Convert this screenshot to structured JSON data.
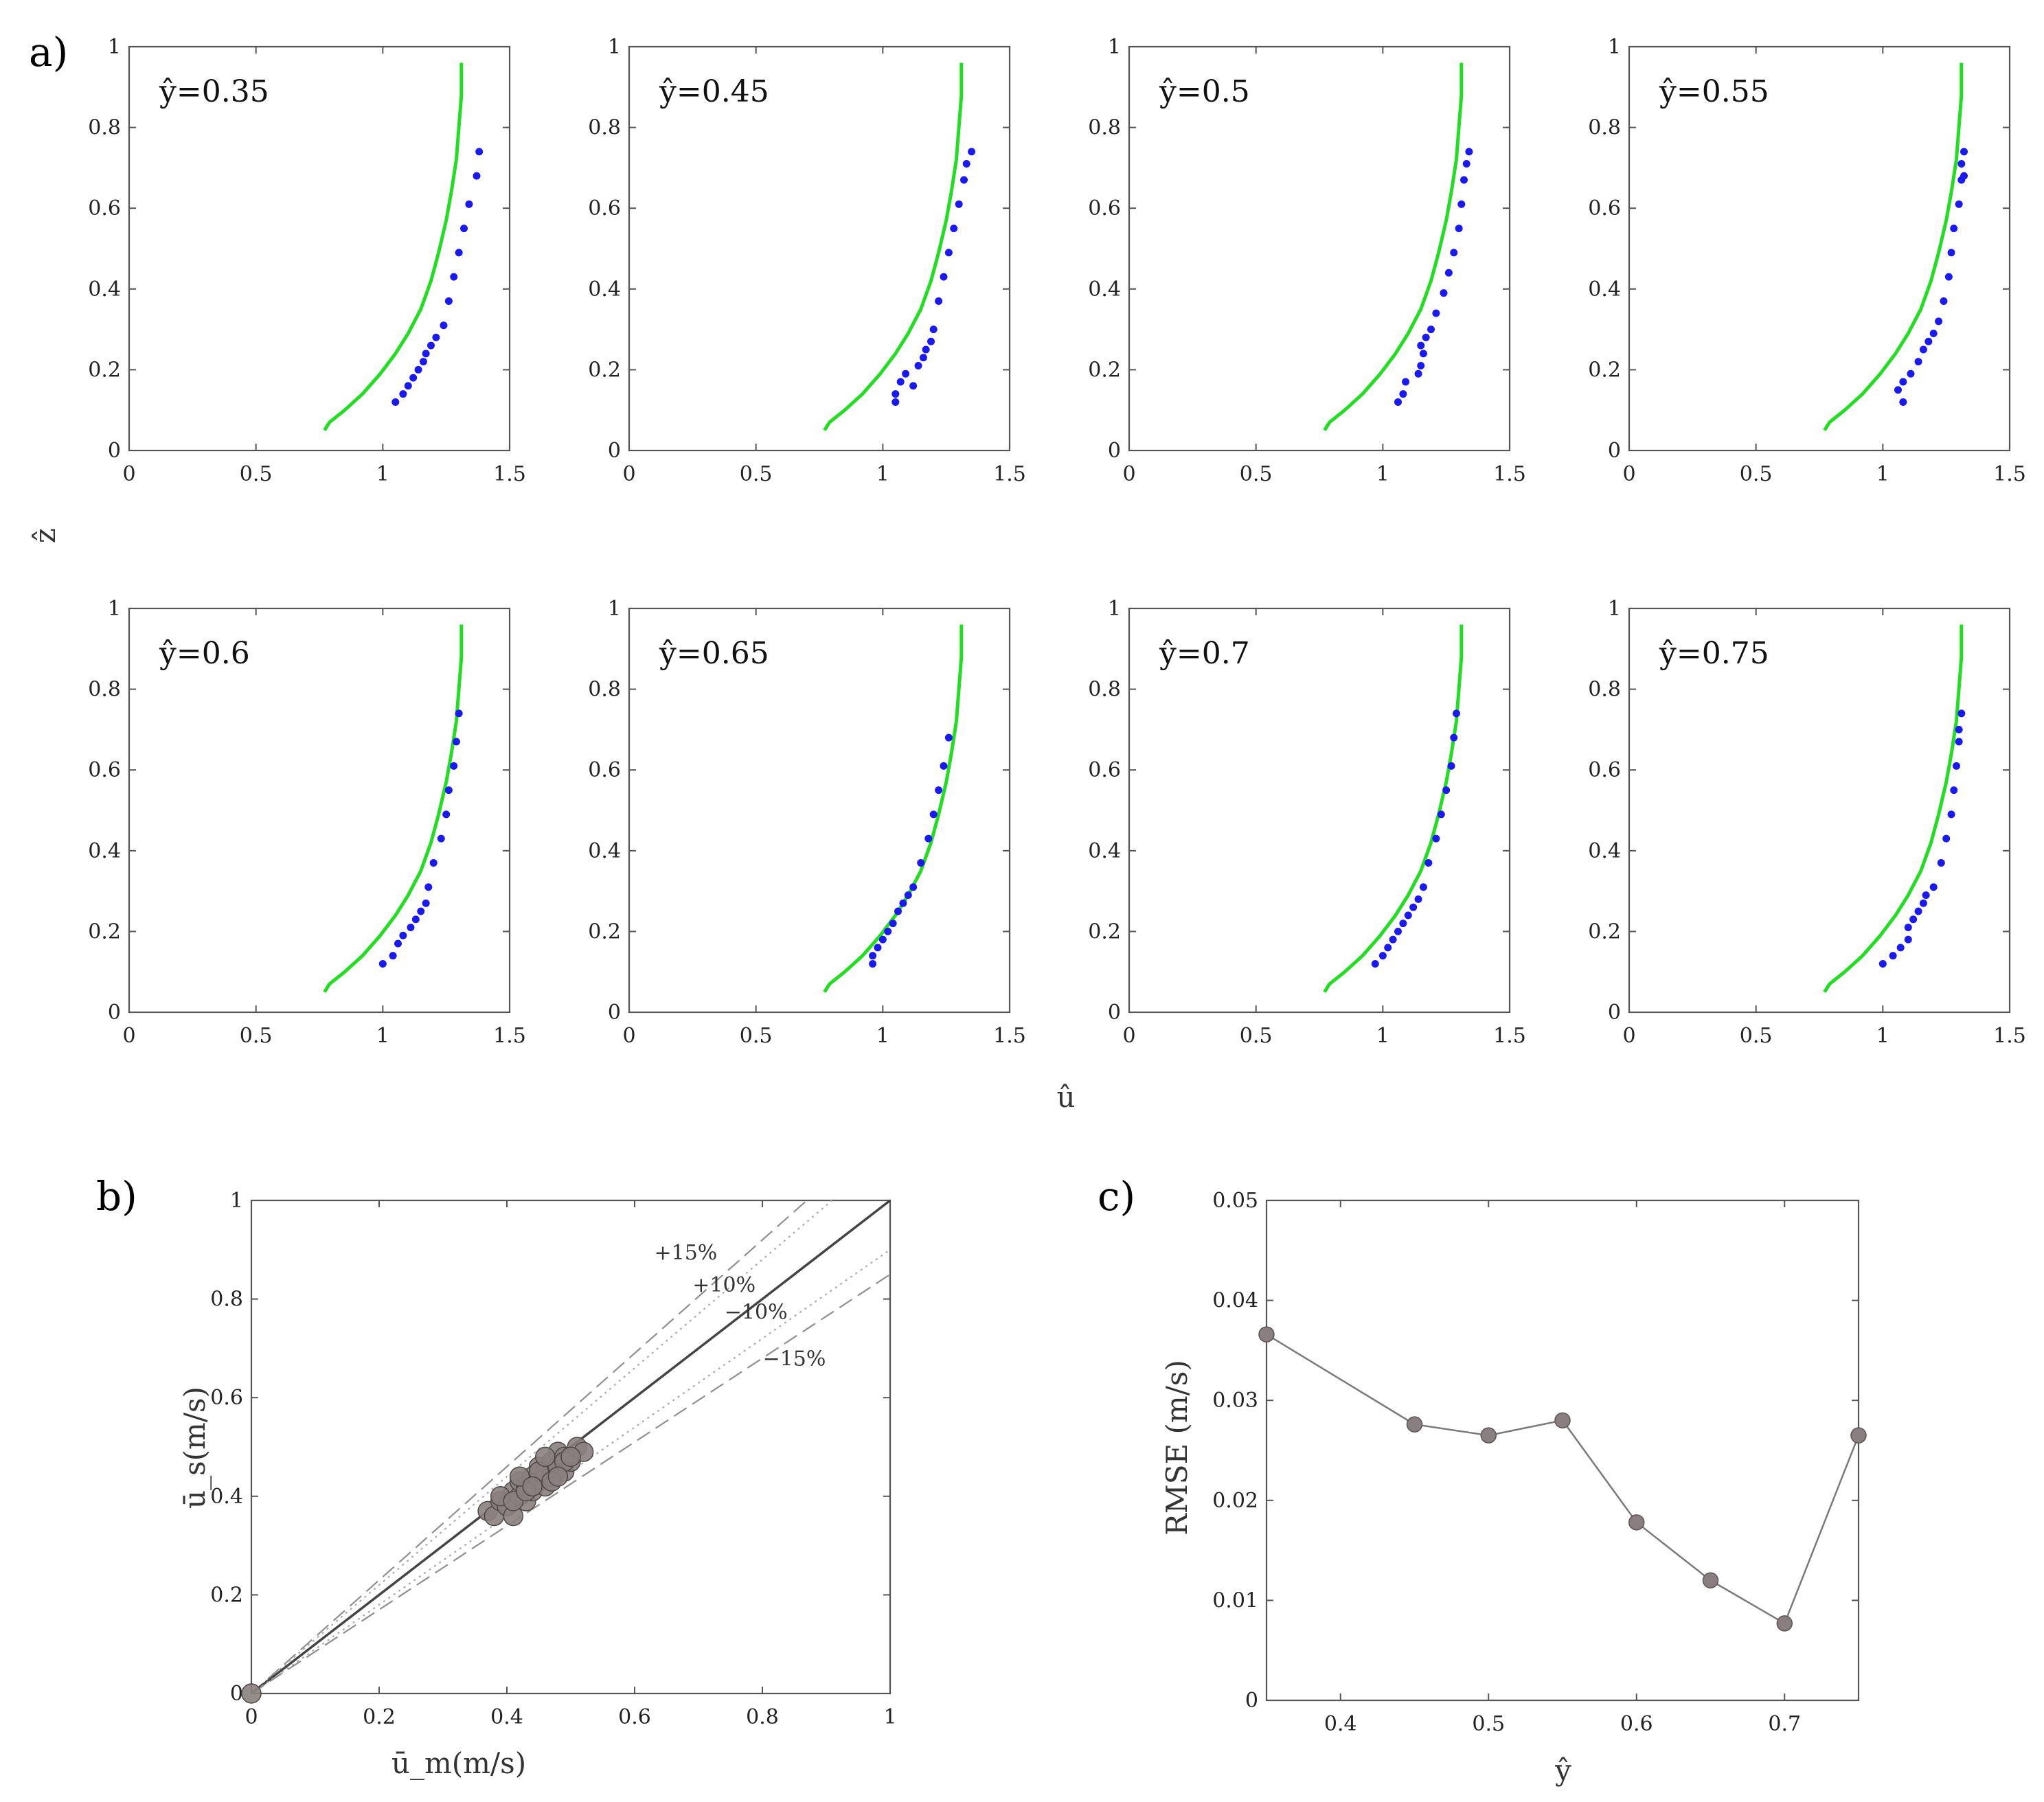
{
  "panel_labels": {
    "a": "a)",
    "b": "b)",
    "c": "c)"
  },
  "chart_data": [
    {
      "type": "scatter",
      "panel": "a",
      "xlabel": "û",
      "ylabel": "ẑ",
      "xlim": [
        0,
        1.5
      ],
      "ylim": [
        0,
        1
      ],
      "xticks": [
        "0",
        "0.5",
        "1",
        "1.5"
      ],
      "yticks": [
        "0",
        "0.2",
        "0.4",
        "0.6",
        "0.8",
        "1"
      ],
      "model_curve_color": "#22dd22",
      "measured_color": "#1a1aee",
      "model_curve": {
        "u": [
          0.77,
          0.79,
          0.85,
          0.92,
          0.99,
          1.05,
          1.1,
          1.15,
          1.19,
          1.22,
          1.25,
          1.27,
          1.29,
          1.3,
          1.31,
          1.31
        ],
        "z": [
          0.05,
          0.07,
          0.1,
          0.14,
          0.19,
          0.24,
          0.29,
          0.35,
          0.42,
          0.49,
          0.57,
          0.64,
          0.72,
          0.8,
          0.88,
          0.96
        ]
      },
      "subplots": [
        {
          "title": "ŷ=0.35",
          "points": {
            "u": [
              1.05,
              1.08,
              1.1,
              1.12,
              1.14,
              1.16,
              1.17,
              1.19,
              1.21,
              1.24,
              1.26,
              1.28,
              1.3,
              1.32,
              1.34,
              1.37,
              1.38
            ],
            "z": [
              0.12,
              0.14,
              0.16,
              0.18,
              0.2,
              0.22,
              0.24,
              0.26,
              0.28,
              0.31,
              0.37,
              0.43,
              0.49,
              0.55,
              0.61,
              0.68,
              0.74
            ]
          }
        },
        {
          "title": "ŷ=0.45",
          "points": {
            "u": [
              1.05,
              1.05,
              1.07,
              1.09,
              1.12,
              1.14,
              1.16,
              1.17,
              1.19,
              1.2,
              1.22,
              1.24,
              1.26,
              1.28,
              1.3,
              1.32,
              1.33,
              1.35
            ],
            "z": [
              0.12,
              0.14,
              0.17,
              0.19,
              0.16,
              0.21,
              0.23,
              0.25,
              0.27,
              0.3,
              0.37,
              0.43,
              0.49,
              0.55,
              0.61,
              0.67,
              0.71,
              0.74
            ]
          }
        },
        {
          "title": "ŷ=0.5",
          "points": {
            "u": [
              1.06,
              1.08,
              1.09,
              1.14,
              1.15,
              1.16,
              1.15,
              1.17,
              1.19,
              1.21,
              1.24,
              1.26,
              1.28,
              1.3,
              1.31,
              1.32,
              1.33,
              1.34
            ],
            "z": [
              0.12,
              0.14,
              0.17,
              0.19,
              0.21,
              0.24,
              0.26,
              0.28,
              0.3,
              0.34,
              0.39,
              0.44,
              0.49,
              0.55,
              0.61,
              0.67,
              0.71,
              0.74
            ]
          }
        },
        {
          "title": "ŷ=0.55",
          "points": {
            "u": [
              1.06,
              1.08,
              1.08,
              1.11,
              1.14,
              1.16,
              1.18,
              1.2,
              1.22,
              1.24,
              1.26,
              1.27,
              1.28,
              1.3,
              1.31,
              1.31,
              1.32,
              1.32
            ],
            "z": [
              0.15,
              0.12,
              0.17,
              0.19,
              0.22,
              0.25,
              0.27,
              0.29,
              0.32,
              0.37,
              0.43,
              0.49,
              0.55,
              0.61,
              0.67,
              0.71,
              0.74,
              0.68
            ]
          }
        },
        {
          "title": "ŷ=0.6",
          "points": {
            "u": [
              1.0,
              1.04,
              1.06,
              1.08,
              1.11,
              1.13,
              1.15,
              1.17,
              1.18,
              1.2,
              1.23,
              1.25,
              1.26,
              1.28,
              1.29,
              1.3
            ],
            "z": [
              0.12,
              0.14,
              0.17,
              0.19,
              0.21,
              0.23,
              0.25,
              0.27,
              0.31,
              0.37,
              0.43,
              0.49,
              0.55,
              0.61,
              0.67,
              0.74
            ]
          }
        },
        {
          "title": "ŷ=0.65",
          "points": {
            "u": [
              0.96,
              0.96,
              0.98,
              1.0,
              1.02,
              1.04,
              1.06,
              1.08,
              1.1,
              1.12,
              1.15,
              1.18,
              1.2,
              1.22,
              1.24,
              1.26
            ],
            "z": [
              0.12,
              0.14,
              0.16,
              0.18,
              0.2,
              0.22,
              0.25,
              0.27,
              0.29,
              0.31,
              0.37,
              0.43,
              0.49,
              0.55,
              0.61,
              0.68
            ]
          }
        },
        {
          "title": "ŷ=0.7",
          "points": {
            "u": [
              0.97,
              1.0,
              1.02,
              1.04,
              1.06,
              1.08,
              1.1,
              1.12,
              1.14,
              1.16,
              1.18,
              1.21,
              1.23,
              1.25,
              1.27,
              1.28,
              1.29
            ],
            "z": [
              0.12,
              0.14,
              0.16,
              0.18,
              0.2,
              0.22,
              0.24,
              0.26,
              0.28,
              0.31,
              0.37,
              0.43,
              0.49,
              0.55,
              0.61,
              0.68,
              0.74
            ]
          }
        },
        {
          "title": "ŷ=0.75",
          "points": {
            "u": [
              1.0,
              1.04,
              1.07,
              1.1,
              1.1,
              1.12,
              1.14,
              1.16,
              1.17,
              1.2,
              1.23,
              1.25,
              1.27,
              1.28,
              1.29,
              1.3,
              1.3,
              1.31
            ],
            "z": [
              0.12,
              0.14,
              0.16,
              0.18,
              0.21,
              0.23,
              0.25,
              0.27,
              0.29,
              0.31,
              0.37,
              0.43,
              0.49,
              0.55,
              0.61,
              0.67,
              0.7,
              0.74
            ]
          }
        }
      ]
    },
    {
      "type": "scatter",
      "panel": "b",
      "xlabel": "ū_m(m/s)",
      "ylabel": "ū_s(m/s)",
      "xlim": [
        0,
        1
      ],
      "ylim": [
        0,
        1
      ],
      "xticks": [
        "0",
        "0.2",
        "0.4",
        "0.6",
        "0.8",
        "1"
      ],
      "yticks": [
        "0",
        "0.2",
        "0.4",
        "0.6",
        "0.8",
        "1"
      ],
      "marker_color": "#8a7f80",
      "reference_lines": [
        {
          "label": "+15%",
          "slope": 1.15,
          "style": "dashed"
        },
        {
          "label": "+10%",
          "slope": 1.1,
          "style": "dotted"
        },
        {
          "label": "",
          "slope": 1.0,
          "style": "solid"
        },
        {
          "label": "−10%",
          "slope": 0.9,
          "style": "dotted"
        },
        {
          "label": "−15%",
          "slope": 0.85,
          "style": "dashed"
        }
      ],
      "points": {
        "x": [
          0,
          0.37,
          0.38,
          0.39,
          0.4,
          0.41,
          0.41,
          0.42,
          0.42,
          0.43,
          0.43,
          0.44,
          0.44,
          0.45,
          0.45,
          0.46,
          0.46,
          0.47,
          0.47,
          0.48,
          0.48,
          0.49,
          0.49,
          0.5,
          0.51,
          0.52,
          0.39,
          0.41,
          0.43,
          0.45,
          0.47,
          0.49,
          0.42,
          0.44,
          0.46,
          0.48,
          0.5
        ],
        "y": [
          0,
          0.37,
          0.36,
          0.39,
          0.38,
          0.36,
          0.41,
          0.4,
          0.43,
          0.39,
          0.42,
          0.44,
          0.41,
          0.43,
          0.46,
          0.42,
          0.45,
          0.44,
          0.47,
          0.46,
          0.49,
          0.45,
          0.48,
          0.47,
          0.5,
          0.49,
          0.4,
          0.39,
          0.41,
          0.45,
          0.43,
          0.47,
          0.44,
          0.42,
          0.48,
          0.44,
          0.48
        ]
      }
    },
    {
      "type": "line",
      "panel": "c",
      "xlabel": "ŷ",
      "ylabel": "RMSE (m/s)",
      "xlim": [
        0.35,
        0.75
      ],
      "ylim": [
        0,
        0.05
      ],
      "xticks": [
        "0.4",
        "0.5",
        "0.6",
        "0.7"
      ],
      "yticks": [
        "0",
        "0.01",
        "0.02",
        "0.03",
        "0.04",
        "0.05"
      ],
      "marker_color": "#8a7f80",
      "x": [
        0.35,
        0.45,
        0.5,
        0.55,
        0.6,
        0.65,
        0.7,
        0.75
      ],
      "y": [
        0.0366,
        0.0276,
        0.0265,
        0.028,
        0.0178,
        0.012,
        0.0077,
        0.0265
      ]
    }
  ]
}
